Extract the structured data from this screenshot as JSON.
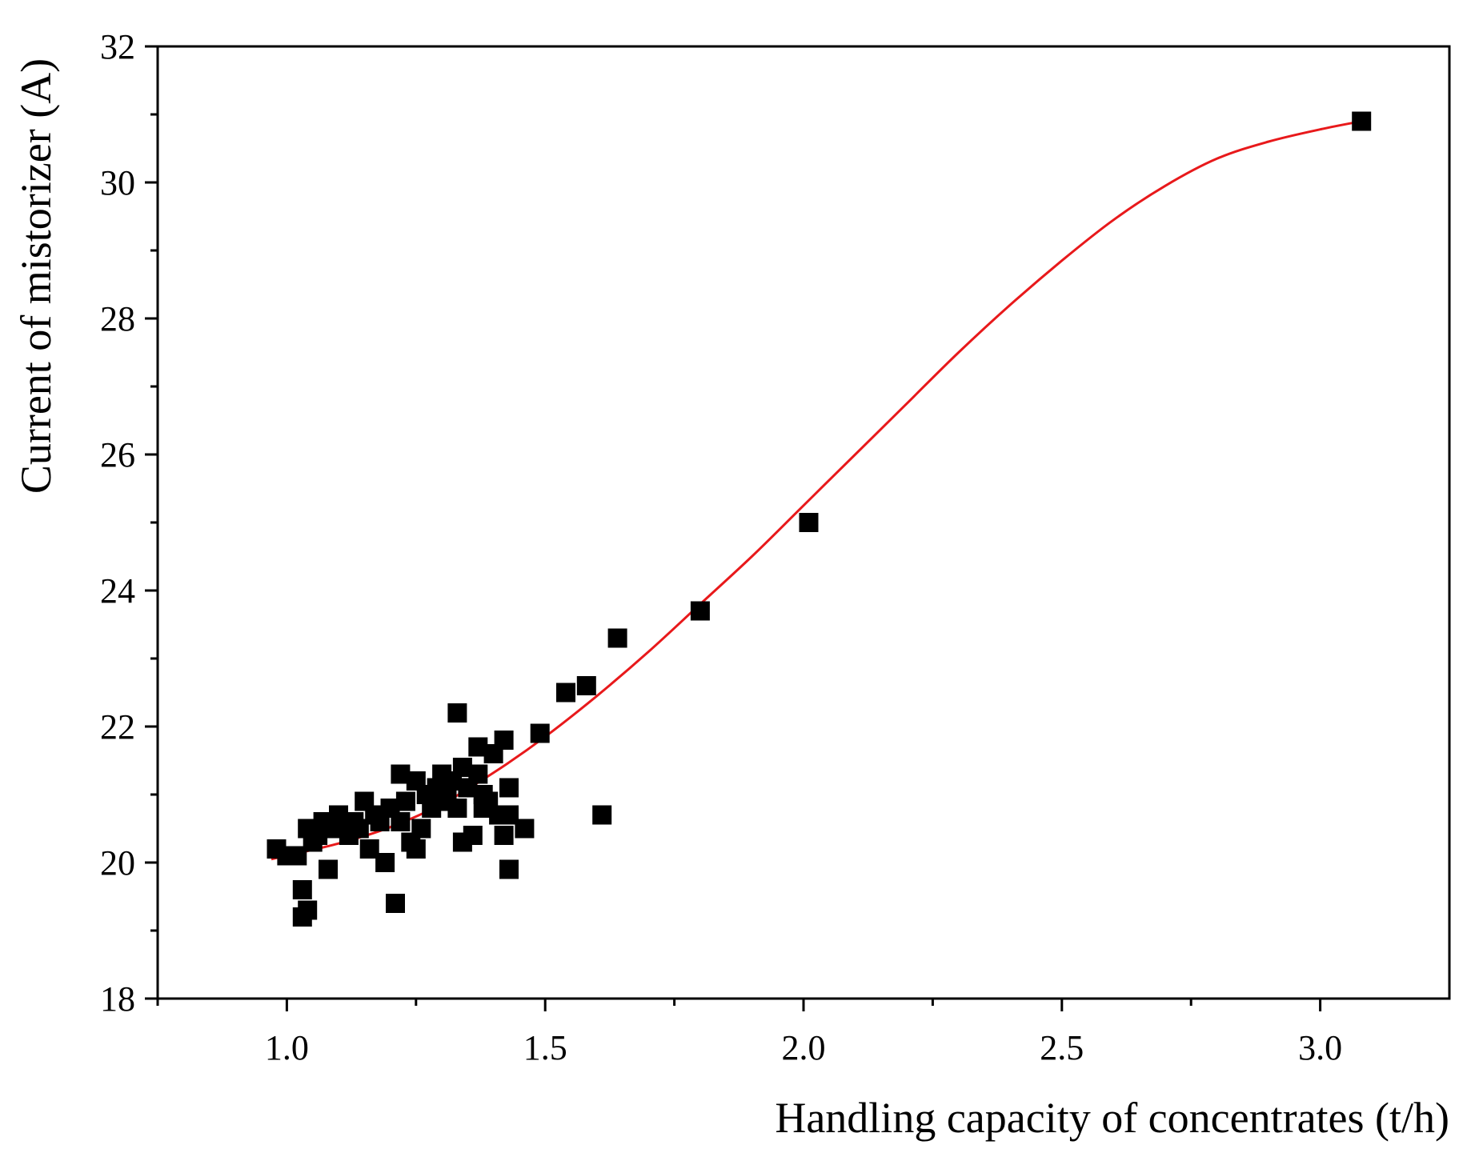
{
  "chart_data": {
    "type": "scatter",
    "title": "",
    "xlabel": "Handling capacity of concentrates (t/h)",
    "ylabel": "Current of mistorizer (A)",
    "xlim": [
      0.75,
      3.25
    ],
    "ylim": [
      18,
      32
    ],
    "x_ticks": [
      1.0,
      1.5,
      2.0,
      2.5,
      3.0
    ],
    "x_tick_labels": [
      "1.0",
      "1.5",
      "2.0",
      "2.5",
      "3.0"
    ],
    "y_ticks": [
      18,
      20,
      22,
      24,
      26,
      28,
      30,
      32
    ],
    "y_tick_labels": [
      "18",
      "20",
      "22",
      "24",
      "26",
      "28",
      "30",
      "32"
    ],
    "grid": false,
    "legend": "none",
    "series": [
      {
        "kind": "points",
        "marker": "square",
        "color": "#000000",
        "points": [
          [
            0.98,
            20.2
          ],
          [
            1.0,
            20.1
          ],
          [
            1.02,
            20.1
          ],
          [
            1.03,
            19.6
          ],
          [
            1.03,
            19.2
          ],
          [
            1.04,
            19.3
          ],
          [
            1.04,
            20.5
          ],
          [
            1.05,
            20.3
          ],
          [
            1.06,
            20.4
          ],
          [
            1.07,
            20.6
          ],
          [
            1.08,
            19.9
          ],
          [
            1.09,
            20.5
          ],
          [
            1.1,
            20.7
          ],
          [
            1.11,
            20.6
          ],
          [
            1.12,
            20.4
          ],
          [
            1.13,
            20.6
          ],
          [
            1.14,
            20.5
          ],
          [
            1.15,
            20.9
          ],
          [
            1.16,
            20.2
          ],
          [
            1.17,
            20.7
          ],
          [
            1.18,
            20.6
          ],
          [
            1.19,
            20.0
          ],
          [
            1.2,
            20.8
          ],
          [
            1.21,
            19.4
          ],
          [
            1.22,
            21.3
          ],
          [
            1.22,
            20.6
          ],
          [
            1.23,
            20.9
          ],
          [
            1.24,
            20.3
          ],
          [
            1.25,
            21.2
          ],
          [
            1.25,
            20.2
          ],
          [
            1.26,
            20.5
          ],
          [
            1.27,
            21.0
          ],
          [
            1.28,
            20.8
          ],
          [
            1.29,
            21.1
          ],
          [
            1.3,
            21.3
          ],
          [
            1.3,
            20.9
          ],
          [
            1.31,
            21.0
          ],
          [
            1.32,
            21.2
          ],
          [
            1.33,
            22.2
          ],
          [
            1.33,
            20.8
          ],
          [
            1.34,
            21.4
          ],
          [
            1.34,
            20.3
          ],
          [
            1.35,
            21.1
          ],
          [
            1.36,
            20.4
          ],
          [
            1.37,
            21.3
          ],
          [
            1.37,
            21.7
          ],
          [
            1.38,
            20.8
          ],
          [
            1.38,
            21.0
          ],
          [
            1.39,
            20.9
          ],
          [
            1.4,
            21.6
          ],
          [
            1.41,
            20.7
          ],
          [
            1.42,
            21.8
          ],
          [
            1.42,
            20.4
          ],
          [
            1.43,
            21.1
          ],
          [
            1.43,
            19.9
          ],
          [
            1.43,
            20.7
          ],
          [
            1.46,
            20.5
          ],
          [
            1.49,
            21.9
          ],
          [
            1.54,
            22.5
          ],
          [
            1.58,
            22.6
          ],
          [
            1.61,
            20.7
          ],
          [
            1.64,
            23.3
          ],
          [
            1.8,
            23.7
          ],
          [
            2.01,
            25.0
          ],
          [
            3.08,
            30.9
          ]
        ]
      },
      {
        "kind": "fit-line",
        "color": "#e8191b",
        "points": [
          [
            0.97,
            20.05
          ],
          [
            1.1,
            20.28
          ],
          [
            1.2,
            20.52
          ],
          [
            1.3,
            20.86
          ],
          [
            1.4,
            21.32
          ],
          [
            1.5,
            21.85
          ],
          [
            1.6,
            22.45
          ],
          [
            1.7,
            23.1
          ],
          [
            1.8,
            23.8
          ],
          [
            1.9,
            24.5
          ],
          [
            2.0,
            25.25
          ],
          [
            2.1,
            26.0
          ],
          [
            2.2,
            26.75
          ],
          [
            2.3,
            27.5
          ],
          [
            2.4,
            28.2
          ],
          [
            2.5,
            28.85
          ],
          [
            2.6,
            29.45
          ],
          [
            2.7,
            29.95
          ],
          [
            2.8,
            30.35
          ],
          [
            2.9,
            30.6
          ],
          [
            3.0,
            30.78
          ],
          [
            3.08,
            30.9
          ]
        ]
      }
    ]
  }
}
